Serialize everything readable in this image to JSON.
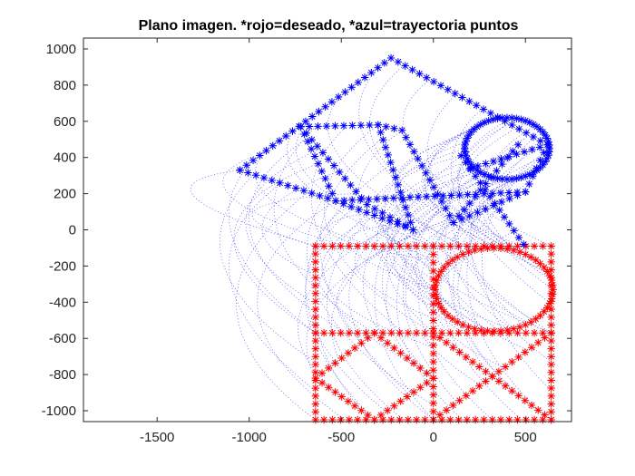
{
  "chart_data": {
    "type": "scatter",
    "title": "Plano imagen. *rojo=deseado, *azul=trayectoria puntos",
    "xlabel": "",
    "ylabel": "",
    "xlim": [
      -1900,
      750
    ],
    "ylim": [
      -1060,
      1060
    ],
    "xticks": [
      -1500,
      -1000,
      -500,
      0,
      500
    ],
    "yticks": [
      -1000,
      -800,
      -600,
      -400,
      -200,
      0,
      200,
      400,
      600,
      800,
      1000
    ],
    "grid": false,
    "colors": {
      "desired": "#ff0000",
      "trajectory": "#0000ff",
      "axes": "#262626"
    },
    "series": [
      {
        "role": "desired",
        "marker": "asterisk",
        "color": "#ff0000",
        "polylines": [
          [
            [
              -640,
              -90
            ],
            [
              0,
              -90
            ],
            [
              640,
              -90
            ],
            [
              640,
              -570
            ],
            [
              640,
              -1050
            ],
            [
              0,
              -1050
            ],
            [
              -640,
              -1050
            ],
            [
              -640,
              -570
            ],
            [
              -640,
              -90
            ]
          ],
          [
            [
              0,
              -90
            ],
            [
              0,
              -1050
            ]
          ],
          [
            [
              -640,
              -570
            ],
            [
              640,
              -570
            ]
          ],
          [
            [
              -320,
              -570
            ],
            [
              -640,
              -820
            ],
            [
              -320,
              -1050
            ],
            [
              0,
              -820
            ],
            [
              -320,
              -570
            ]
          ],
          [
            [
              0,
              -1050
            ],
            [
              640,
              -570
            ]
          ],
          [
            [
              0,
              -570
            ],
            [
              640,
              -1050
            ]
          ]
        ],
        "ellipses": [
          {
            "cx": 330,
            "cy": -330,
            "rx": 320,
            "ry": 230
          }
        ]
      },
      {
        "role": "trajectory_final",
        "marker": "asterisk",
        "color": "#0000ff",
        "polylines": [
          [
            [
              -1050,
              330
            ],
            [
              -230,
              950
            ],
            [
              620,
              470
            ],
            [
              500,
              210
            ],
            [
              -530,
              160
            ],
            [
              -1050,
              330
            ]
          ],
          [
            [
              -720,
              570
            ],
            [
              -360,
              140
            ],
            [
              -110,
              0
            ],
            [
              -530,
              160
            ],
            [
              -720,
              570
            ],
            [
              -300,
              580
            ],
            [
              -170,
              550
            ],
            [
              110,
              40
            ],
            [
              500,
              210
            ]
          ],
          [
            [
              -110,
              0
            ],
            [
              -300,
              580
            ]
          ],
          [
            [
              200,
              340
            ],
            [
              620,
              470
            ]
          ],
          [
            [
              150,
              410
            ],
            [
              490,
              -80
            ]
          ],
          [
            [
              110,
              40
            ],
            [
              460,
              470
            ]
          ]
        ],
        "ellipses": [
          {
            "cx": 400,
            "cy": 450,
            "rx": 230,
            "ry": 170
          }
        ]
      }
    ]
  }
}
